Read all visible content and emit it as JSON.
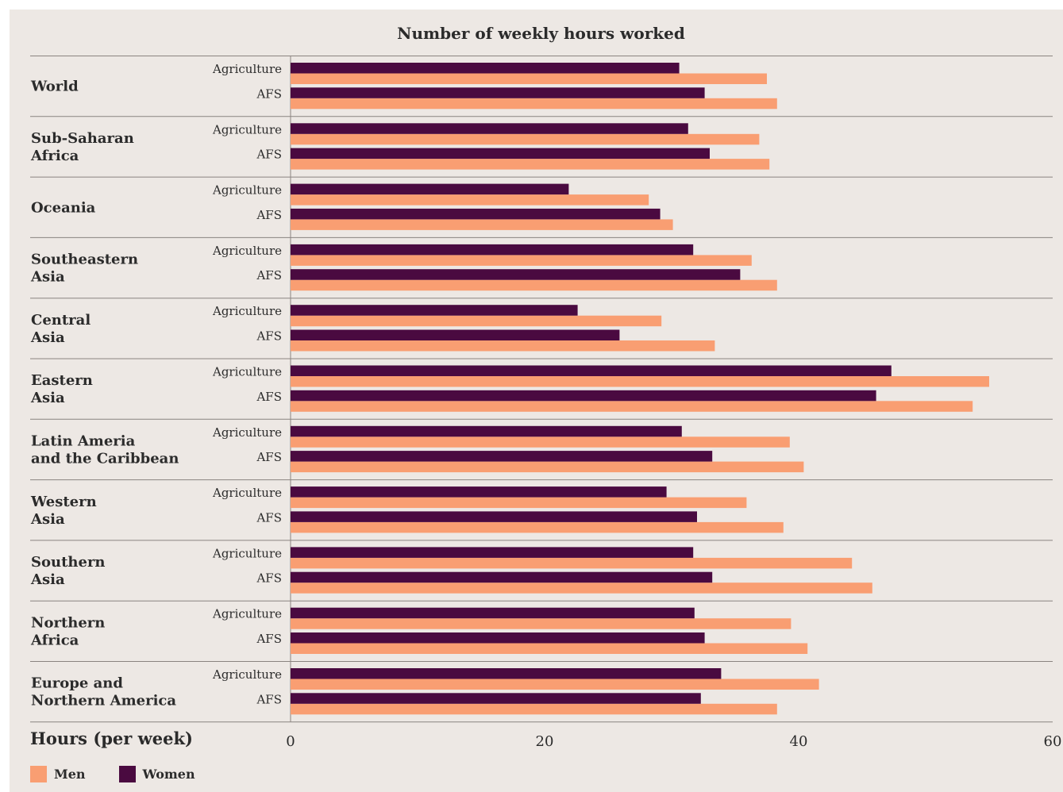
{
  "chart_data": {
    "type": "bar",
    "orientation": "horizontal",
    "title": "Number of weekly hours worked",
    "xlabel": "Hours (per week)",
    "xlim": [
      0,
      60
    ],
    "xticks": [
      "0",
      "20",
      "40",
      "60"
    ],
    "legend_placement": "bottom-left",
    "colors": {
      "Men": "#f99e72",
      "Women": "#4a0a40"
    },
    "series": [
      {
        "name": "Women",
        "color": "#4a0a40"
      },
      {
        "name": "Men",
        "color": "#f99e72"
      }
    ],
    "groups": [
      {
        "region": [
          "World"
        ],
        "rows": [
          {
            "category": "Agriculture",
            "women": 30.6,
            "men": 37.5
          },
          {
            "category": "AFS",
            "women": 32.6,
            "men": 38.3
          }
        ]
      },
      {
        "region": [
          "Sub-Saharan",
          "Africa"
        ],
        "rows": [
          {
            "category": "Agriculture",
            "women": 31.3,
            "men": 36.9
          },
          {
            "category": "AFS",
            "women": 33.0,
            "men": 37.7
          }
        ]
      },
      {
        "region": [
          "Oceania"
        ],
        "rows": [
          {
            "category": "Agriculture",
            "women": 21.9,
            "men": 28.2
          },
          {
            "category": "AFS",
            "women": 29.1,
            "men": 30.1
          }
        ]
      },
      {
        "region": [
          "Southeastern",
          "Asia"
        ],
        "rows": [
          {
            "category": "Agriculture",
            "women": 31.7,
            "men": 36.3
          },
          {
            "category": "AFS",
            "women": 35.4,
            "men": 38.3
          }
        ]
      },
      {
        "region": [
          "Central",
          "Asia"
        ],
        "rows": [
          {
            "category": "Agriculture",
            "women": 22.6,
            "men": 29.2
          },
          {
            "category": "AFS",
            "women": 25.9,
            "men": 33.4
          }
        ]
      },
      {
        "region": [
          "Eastern",
          "Asia"
        ],
        "rows": [
          {
            "category": "Agriculture",
            "women": 47.3,
            "men": 55.0
          },
          {
            "category": "AFS",
            "women": 46.1,
            "men": 53.7
          }
        ]
      },
      {
        "region": [
          "Latin Ameria",
          "and the Caribbean"
        ],
        "rows": [
          {
            "category": "Agriculture",
            "women": 30.8,
            "men": 39.3
          },
          {
            "category": "AFS",
            "women": 33.2,
            "men": 40.4
          }
        ]
      },
      {
        "region": [
          "Western",
          "Asia"
        ],
        "rows": [
          {
            "category": "Agriculture",
            "women": 29.6,
            "men": 35.9
          },
          {
            "category": "AFS",
            "women": 32.0,
            "men": 38.8
          }
        ]
      },
      {
        "region": [
          "Southern",
          "Asia"
        ],
        "rows": [
          {
            "category": "Agriculture",
            "women": 31.7,
            "men": 44.2
          },
          {
            "category": "AFS",
            "women": 33.2,
            "men": 45.8
          }
        ]
      },
      {
        "region": [
          "Northern",
          "Africa"
        ],
        "rows": [
          {
            "category": "Agriculture",
            "women": 31.8,
            "men": 39.4
          },
          {
            "category": "AFS",
            "women": 32.6,
            "men": 40.7
          }
        ]
      },
      {
        "region": [
          "Europe and",
          "Northern America"
        ],
        "rows": [
          {
            "category": "Agriculture",
            "women": 33.9,
            "men": 41.6
          },
          {
            "category": "AFS",
            "women": 32.3,
            "men": 38.3
          }
        ]
      }
    ]
  }
}
